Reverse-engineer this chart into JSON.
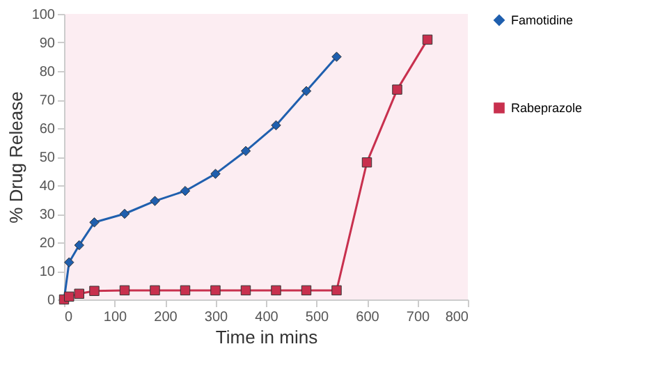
{
  "chart_data": {
    "type": "line",
    "xlabel": "Time in mins",
    "ylabel": "% Drug Release",
    "xlim": [
      0,
      800
    ],
    "xticks": [
      0,
      100,
      200,
      300,
      400,
      500,
      600,
      700,
      800
    ],
    "ylim": [
      0,
      100
    ],
    "yticks": [
      0,
      10,
      20,
      30,
      40,
      50,
      60,
      70,
      80,
      90,
      100
    ],
    "grid": false,
    "legend": "right",
    "line_style": "solid",
    "series": [
      {
        "name": "Famotidine",
        "color": "#1f5fae",
        "marker": "diamond",
        "x": [
          0,
          10,
          30,
          60,
          120,
          180,
          240,
          300,
          360,
          420,
          480,
          540
        ],
        "values": [
          0,
          13,
          19,
          27,
          30,
          34.5,
          38,
          44,
          52,
          61,
          73,
          85
        ]
      },
      {
        "name": "Rabeprazole",
        "color": "#c8304e",
        "marker": "square",
        "x": [
          0,
          10,
          30,
          60,
          120,
          180,
          240,
          300,
          360,
          420,
          480,
          540,
          600,
          660,
          720
        ],
        "values": [
          0,
          1,
          2,
          3,
          3.2,
          3.2,
          3.2,
          3.2,
          3.2,
          3.2,
          3.2,
          3.2,
          48,
          73.5,
          91
        ]
      }
    ]
  }
}
